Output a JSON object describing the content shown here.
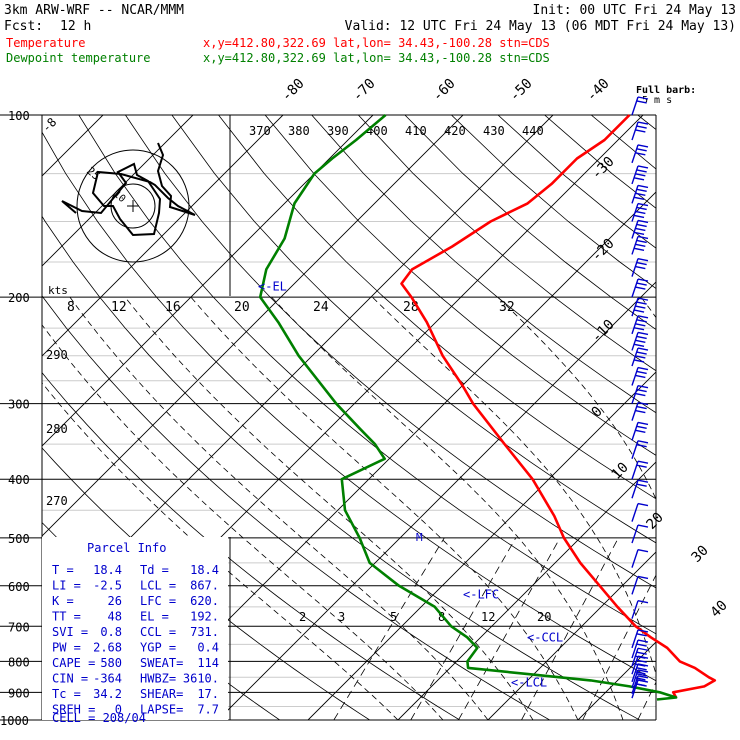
{
  "header": {
    "model": "3km ARW-WRF -- NCAR/MMM",
    "init": "Init: 00 UTC Fri 24 May 13",
    "fcst_label": "Fcst:",
    "fcst_value": "12 h",
    "valid": "Valid: 12 UTC Fri 24 May 13 (06 MDT Fri 24 May 13)",
    "temp_label": "Temperature",
    "temp_info": "x,y=412.80,322.69   lat,lon= 34.43,-100.28  stn=CDS",
    "dew_label": "Dewpoint temperature",
    "dew_info": "x,y=412.80,322.69   lat,lon= 34.43,-100.28  stn=CDS",
    "barb_key_1": "Full barb:",
    "barb_key_2": "5 m s"
  },
  "colors": {
    "temperature": "#ff0000",
    "dewpoint": "#008000",
    "levels": "#0000cc",
    "text": "#000000"
  },
  "parcel_info": {
    "title": "Parcel Info",
    "rows": [
      [
        "T  =",
        "18.4",
        "Td =",
        "18.4"
      ],
      [
        "LI =",
        "-2.5",
        "LCL =",
        "867."
      ],
      [
        "K  =",
        "26",
        "LFC =",
        "620."
      ],
      [
        "TT =",
        "48",
        "EL  =",
        "192."
      ],
      [
        "SVI =",
        "0.8",
        "CCL =",
        "731."
      ],
      [
        "PW =",
        "2.68",
        "YGP =",
        "0.4"
      ],
      [
        "CAPE =",
        "580",
        "SWEAT=",
        "114"
      ],
      [
        "CIN =",
        "-364",
        "HWBZ=",
        "3610."
      ],
      [
        "Tc =",
        "34.2",
        "SHEAR=",
        "17."
      ],
      [
        "SREH =",
        "0",
        "LAPSE=",
        "7.7"
      ]
    ],
    "cell": "CELL = 208/04"
  },
  "chart_data": {
    "type": "skew-T log-p sounding",
    "y_axis": "pressure (hPa)",
    "pressure_ticks": [
      100,
      200,
      300,
      400,
      500,
      600,
      700,
      800,
      900,
      1000
    ],
    "isotherm_labels": [
      "-80",
      "-70",
      "-60",
      "-50",
      "-40",
      "-30",
      "-20",
      "-10",
      "0",
      "10",
      "20",
      "30",
      "40"
    ],
    "theta_labels": [
      "370",
      "380",
      "390",
      "400",
      "410",
      "420",
      "430",
      "440"
    ],
    "theta_side_labels": [
      "290",
      "280",
      "270"
    ],
    "mixing_ratio_labels": [
      "2",
      "3",
      "5",
      "8",
      "12",
      "20"
    ],
    "upper_scale_labels": [
      "8",
      "12",
      "16",
      "20",
      "24",
      "28",
      "32"
    ],
    "levels": [
      {
        "name": "EL",
        "text": "<-EL",
        "p": 192
      },
      {
        "name": "LFC",
        "text": "<-LFC",
        "p": 620
      },
      {
        "name": "CCL",
        "text": "<-CCL",
        "p": 731
      },
      {
        "name": "LCL",
        "text": "<-LCL",
        "p": 867
      }
    ],
    "series": [
      {
        "name": "Temperature",
        "points": [
          [
            918,
            18.4
          ],
          [
            900,
            17.5
          ],
          [
            880,
            20.3
          ],
          [
            860,
            20.8
          ],
          [
            850,
            19.8
          ],
          [
            820,
            17.2
          ],
          [
            800,
            14.8
          ],
          [
            760,
            11.9
          ],
          [
            730,
            8.9
          ],
          [
            700,
            6.0
          ],
          [
            650,
            1.8
          ],
          [
            600,
            -2.5
          ],
          [
            550,
            -7.2
          ],
          [
            500,
            -11.8
          ],
          [
            460,
            -15.3
          ],
          [
            400,
            -21.8
          ],
          [
            350,
            -28.8
          ],
          [
            300,
            -36.8
          ],
          [
            280,
            -40.0
          ],
          [
            250,
            -45.5
          ],
          [
            220,
            -51.0
          ],
          [
            200,
            -55.5
          ],
          [
            190,
            -58.1
          ],
          [
            180,
            -58.5
          ],
          [
            165,
            -56.6
          ],
          [
            150,
            -55.1
          ],
          [
            140,
            -53.0
          ],
          [
            130,
            -52.5
          ],
          [
            118,
            -52.5
          ],
          [
            110,
            -51.5
          ],
          [
            100,
            -51.5
          ]
        ]
      },
      {
        "name": "Dewpoint temperature",
        "points": [
          [
            925,
            16.5
          ],
          [
            918,
            18.4
          ],
          [
            900,
            16.0
          ],
          [
            880,
            12.0
          ],
          [
            860,
            7.0
          ],
          [
            840,
            -0.5
          ],
          [
            820,
            -8.0
          ],
          [
            800,
            -8.8
          ],
          [
            760,
            -9.2
          ],
          [
            730,
            -11.5
          ],
          [
            700,
            -14.5
          ],
          [
            650,
            -18.5
          ],
          [
            600,
            -24.8
          ],
          [
            550,
            -30.6
          ],
          [
            500,
            -34.5
          ],
          [
            450,
            -39.2
          ],
          [
            400,
            -43.0
          ],
          [
            370,
            -40.5
          ],
          [
            350,
            -43.2
          ],
          [
            330,
            -46.6
          ],
          [
            300,
            -52.0
          ],
          [
            250,
            -61.5
          ],
          [
            220,
            -67.5
          ],
          [
            200,
            -72.3
          ],
          [
            180,
            -74.7
          ],
          [
            160,
            -76.1
          ],
          [
            140,
            -78.9
          ],
          [
            125,
            -80.0
          ],
          [
            118,
            -79.7
          ],
          [
            110,
            -79.1
          ],
          [
            100,
            -78.6
          ]
        ]
      }
    ],
    "winds": [
      {
        "p": 100,
        "barbs": 2
      },
      {
        "p": 110,
        "barbs": 3
      },
      {
        "p": 120,
        "barbs": 3
      },
      {
        "p": 130,
        "barbs": 4
      },
      {
        "p": 140,
        "barbs": 4
      },
      {
        "p": 150,
        "barbs": 4
      },
      {
        "p": 160,
        "barbs": 4
      },
      {
        "p": 170,
        "barbs": 4
      },
      {
        "p": 185,
        "barbs": 3
      },
      {
        "p": 200,
        "barbs": 3
      },
      {
        "p": 215,
        "barbs": 4
      },
      {
        "p": 230,
        "barbs": 4
      },
      {
        "p": 245,
        "barbs": 4
      },
      {
        "p": 260,
        "barbs": 4
      },
      {
        "p": 280,
        "barbs": 3
      },
      {
        "p": 300,
        "barbs": 3
      },
      {
        "p": 320,
        "barbs": 3
      },
      {
        "p": 345,
        "barbs": 3
      },
      {
        "p": 370,
        "barbs": 2
      },
      {
        "p": 400,
        "barbs": 2
      },
      {
        "p": 430,
        "barbs": 2
      },
      {
        "p": 470,
        "barbs": 1
      },
      {
        "p": 510,
        "barbs": 1
      },
      {
        "p": 560,
        "barbs": 1
      },
      {
        "p": 620,
        "barbs": 1
      },
      {
        "p": 680,
        "barbs": 1
      },
      {
        "p": 760,
        "barbs": 2
      },
      {
        "p": 790,
        "barbs": 2
      },
      {
        "p": 815,
        "barbs": 3
      },
      {
        "p": 840,
        "barbs": 3
      },
      {
        "p": 865,
        "barbs": 3
      },
      {
        "p": 885,
        "barbs": 3
      },
      {
        "p": 905,
        "barbs": 3
      },
      {
        "p": 920,
        "barbs": 2
      }
    ],
    "hodograph": {
      "ring_labels": [
        "25",
        "10"
      ],
      "unit_label": "kts"
    }
  }
}
